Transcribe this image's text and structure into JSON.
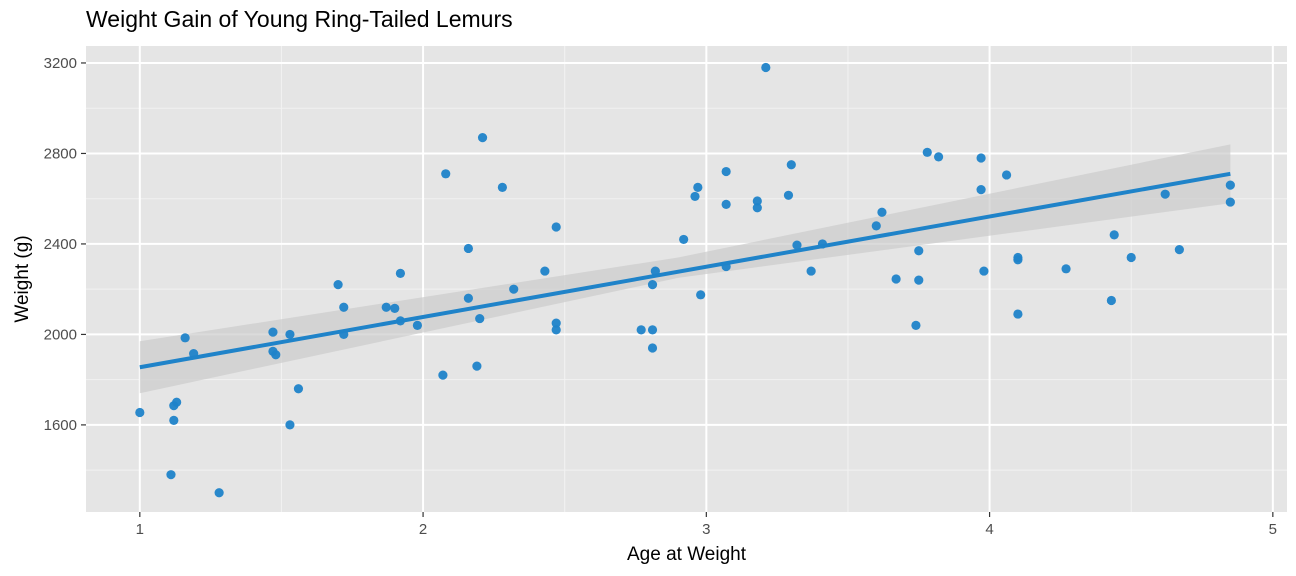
{
  "chart_data": {
    "type": "scatter",
    "title": "Weight Gain of Young Ring-Tailed Lemurs",
    "xlabel": "Age at Weight",
    "ylabel": "Weight (g)",
    "xlim": [
      0.81,
      5.05
    ],
    "ylim": [
      1215,
      3275
    ],
    "x_ticks": [
      1,
      2,
      3,
      4,
      5
    ],
    "y_ticks": [
      1600,
      2000,
      2400,
      2800,
      3200
    ],
    "grid": true,
    "point_color": "#1f83c9",
    "line_color": "#1f83c9",
    "band_color": "#cccccc",
    "panel_color": "#e5e5e5",
    "points": [
      {
        "x": 1.0,
        "y": 1655
      },
      {
        "x": 1.11,
        "y": 1380
      },
      {
        "x": 1.12,
        "y": 1620
      },
      {
        "x": 1.12,
        "y": 1685
      },
      {
        "x": 1.13,
        "y": 1700
      },
      {
        "x": 1.16,
        "y": 1985
      },
      {
        "x": 1.19,
        "y": 1915
      },
      {
        "x": 1.28,
        "y": 1300
      },
      {
        "x": 1.47,
        "y": 2010
      },
      {
        "x": 1.47,
        "y": 1925
      },
      {
        "x": 1.48,
        "y": 1910
      },
      {
        "x": 1.53,
        "y": 2000
      },
      {
        "x": 1.53,
        "y": 1600
      },
      {
        "x": 1.56,
        "y": 1760
      },
      {
        "x": 1.7,
        "y": 2220
      },
      {
        "x": 1.72,
        "y": 2120
      },
      {
        "x": 1.72,
        "y": 2000
      },
      {
        "x": 1.87,
        "y": 2120
      },
      {
        "x": 1.9,
        "y": 2115
      },
      {
        "x": 1.92,
        "y": 2270
      },
      {
        "x": 1.92,
        "y": 2060
      },
      {
        "x": 1.98,
        "y": 2040
      },
      {
        "x": 2.07,
        "y": 1820
      },
      {
        "x": 2.08,
        "y": 2710
      },
      {
        "x": 2.16,
        "y": 2380
      },
      {
        "x": 2.16,
        "y": 2160
      },
      {
        "x": 2.19,
        "y": 1860
      },
      {
        "x": 2.2,
        "y": 2070
      },
      {
        "x": 2.21,
        "y": 2870
      },
      {
        "x": 2.28,
        "y": 2650
      },
      {
        "x": 2.32,
        "y": 2200
      },
      {
        "x": 2.43,
        "y": 2280
      },
      {
        "x": 2.47,
        "y": 2475
      },
      {
        "x": 2.47,
        "y": 2050
      },
      {
        "x": 2.47,
        "y": 2020
      },
      {
        "x": 2.77,
        "y": 2020
      },
      {
        "x": 2.81,
        "y": 2020
      },
      {
        "x": 2.81,
        "y": 1940
      },
      {
        "x": 2.81,
        "y": 2220
      },
      {
        "x": 2.82,
        "y": 2280
      },
      {
        "x": 2.92,
        "y": 2420
      },
      {
        "x": 2.96,
        "y": 2610
      },
      {
        "x": 2.97,
        "y": 2650
      },
      {
        "x": 2.98,
        "y": 2175
      },
      {
        "x": 3.07,
        "y": 2720
      },
      {
        "x": 3.07,
        "y": 2575
      },
      {
        "x": 3.07,
        "y": 2300
      },
      {
        "x": 3.18,
        "y": 2590
      },
      {
        "x": 3.18,
        "y": 2560
      },
      {
        "x": 3.21,
        "y": 3180
      },
      {
        "x": 3.29,
        "y": 2615
      },
      {
        "x": 3.3,
        "y": 2750
      },
      {
        "x": 3.32,
        "y": 2395
      },
      {
        "x": 3.37,
        "y": 2280
      },
      {
        "x": 3.41,
        "y": 2400
      },
      {
        "x": 3.6,
        "y": 2480
      },
      {
        "x": 3.62,
        "y": 2540
      },
      {
        "x": 3.67,
        "y": 2245
      },
      {
        "x": 3.74,
        "y": 2040
      },
      {
        "x": 3.75,
        "y": 2370
      },
      {
        "x": 3.75,
        "y": 2240
      },
      {
        "x": 3.78,
        "y": 2805
      },
      {
        "x": 3.82,
        "y": 2785
      },
      {
        "x": 3.97,
        "y": 2780
      },
      {
        "x": 3.97,
        "y": 2640
      },
      {
        "x": 3.98,
        "y": 2280
      },
      {
        "x": 4.06,
        "y": 2705
      },
      {
        "x": 4.1,
        "y": 2340
      },
      {
        "x": 4.1,
        "y": 2330
      },
      {
        "x": 4.1,
        "y": 2090
      },
      {
        "x": 4.27,
        "y": 2290
      },
      {
        "x": 4.43,
        "y": 2150
      },
      {
        "x": 4.44,
        "y": 2440
      },
      {
        "x": 4.5,
        "y": 2340
      },
      {
        "x": 4.62,
        "y": 2620
      },
      {
        "x": 4.67,
        "y": 2375
      },
      {
        "x": 4.85,
        "y": 2660
      },
      {
        "x": 4.85,
        "y": 2585
      }
    ],
    "fit_line": {
      "x": [
        1.0,
        4.85
      ],
      "y": [
        1855,
        2710
      ]
    },
    "confidence_band": {
      "x": [
        1.0,
        2.9,
        4.85
      ],
      "upper": [
        1970,
        2340,
        2840
      ],
      "lower": [
        1740,
        2250,
        2580
      ]
    }
  }
}
